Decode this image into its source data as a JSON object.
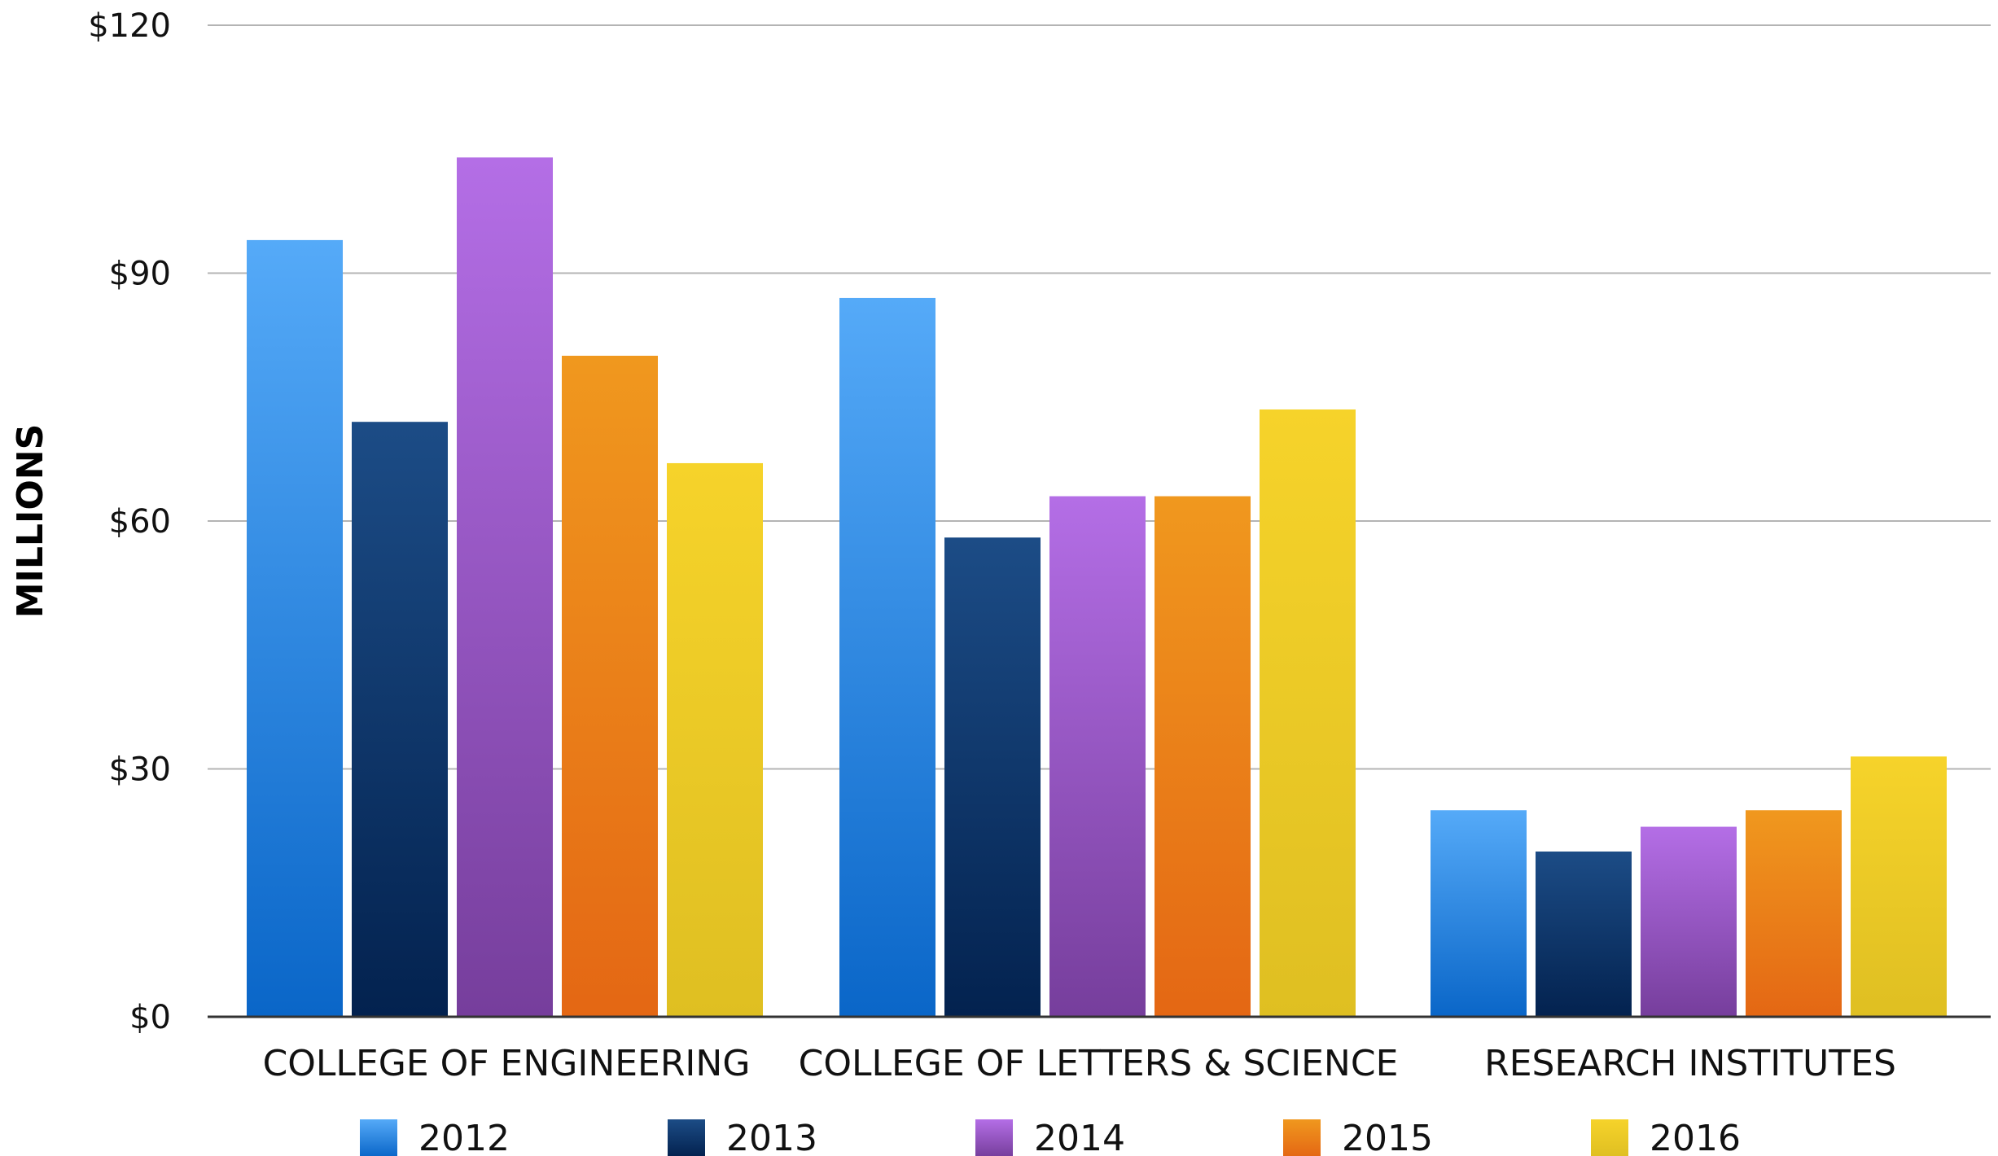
{
  "chart_data": {
    "type": "bar",
    "categories": [
      "COLLEGE OF ENGINEERING",
      "COLLEGE OF LETTERS & SCIENCE",
      "RESEARCH INSTITUTES"
    ],
    "series": [
      {
        "name": "2012",
        "values": [
          94,
          87,
          25
        ],
        "color_top": "#55aaf8",
        "color_bottom": "#0a66c8"
      },
      {
        "name": "2013",
        "values": [
          72,
          58,
          20
        ],
        "color_top": "#1c4c86",
        "color_bottom": "#03224f"
      },
      {
        "name": "2014",
        "values": [
          104,
          63,
          23
        ],
        "color_top": "#b46ee6",
        "color_bottom": "#763e9c"
      },
      {
        "name": "2015",
        "values": [
          80,
          63,
          25
        ],
        "color_top": "#f0981e",
        "color_bottom": "#e46714"
      },
      {
        "name": "2016",
        "values": [
          67,
          73.5,
          31.5
        ],
        "color_top": "#f6d32a",
        "color_bottom": "#dfbf22"
      }
    ],
    "ylabel": "MILLIONS",
    "xlabel": "",
    "ylim": [
      0,
      120
    ],
    "yticks": [
      {
        "value": 0,
        "label": "$0"
      },
      {
        "value": 30,
        "label": "$30"
      },
      {
        "value": 60,
        "label": "$60"
      },
      {
        "value": 90,
        "label": "$90"
      },
      {
        "value": 120,
        "label": "$120"
      }
    ],
    "grid": true,
    "legend_position": "bottom",
    "gridline_color": "#b4b4b4",
    "axis_color": "#333333"
  }
}
